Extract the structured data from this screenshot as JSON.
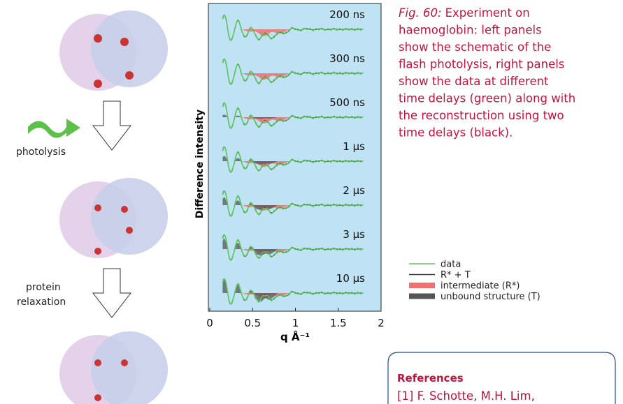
{
  "figure": {
    "left_labels": {
      "step1": "photolysis",
      "step2": [
        "protein",
        "relaxation"
      ]
    },
    "chart": {
      "y_label": "Difference intensity",
      "x_label": "q Å⁻¹",
      "xlim": [
        0,
        2
      ],
      "xticks": [
        0,
        0.5,
        1,
        1.5,
        2
      ],
      "time_labels": [
        "200 ns",
        "300 ns",
        "500 ns",
        "1 μs",
        "2 μs",
        "3 μs",
        "10 μs"
      ],
      "background": "#bfe3f5"
    },
    "legend": [
      {
        "name": "data",
        "color": "#5cc85c"
      },
      {
        "name": "R* + T",
        "color": "#333333"
      },
      {
        "name": "intermediate (R*)",
        "color": "#f07070"
      },
      {
        "name": "unbound structure (T)",
        "color": "#555555"
      }
    ]
  },
  "caption": {
    "label": "Fig. 60:",
    "lines": [
      "Experiment on",
      "haemoglobin: left panels",
      "show the schematic of the",
      "flash photolysis, right panels",
      "show the data at different",
      "time delays (green) along with",
      "the reconstruction using two",
      "time delays (black)."
    ]
  },
  "references": {
    "title": "References",
    "first": "[1] F. Schotte, M.H. Lim,"
  }
}
